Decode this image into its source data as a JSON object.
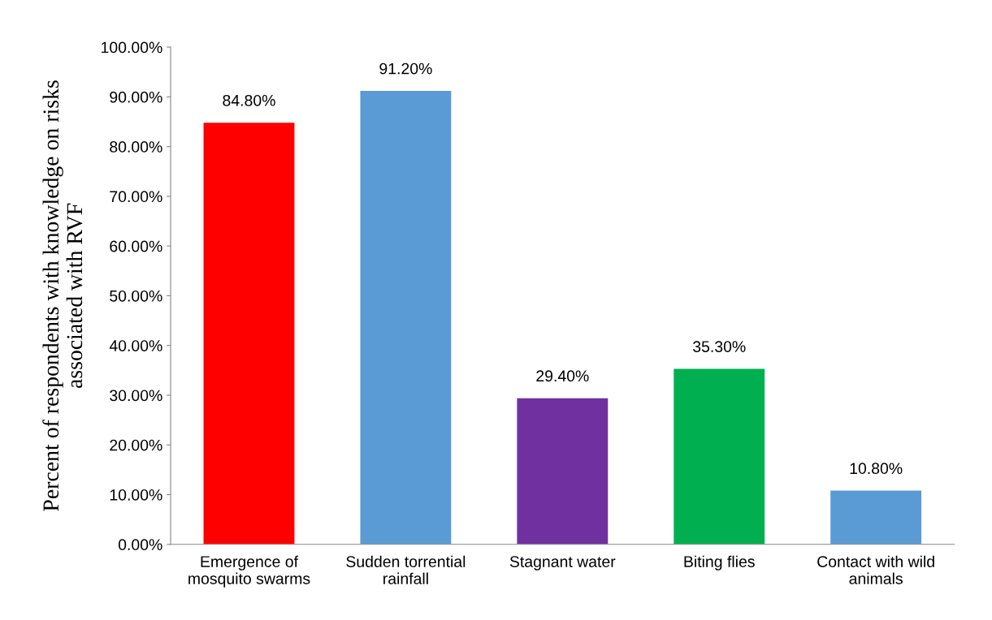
{
  "chart_data": {
    "type": "bar",
    "ylabel": "Percent of respondents with knowledge on risks\nassociated with RVF",
    "categories": [
      "Emergence of\nmosquito swarms",
      "Sudden torrential\nrainfall",
      "Stagnant water",
      "Biting flies",
      "Contact with wild\nanimals"
    ],
    "values": [
      84.8,
      91.2,
      29.4,
      35.3,
      10.8
    ],
    "colors": [
      "#ff0000",
      "#5b9bd5",
      "#7030a0",
      "#00b050",
      "#5b9bd5"
    ],
    "value_labels": [
      "84.80%",
      "91.20%",
      "29.40%",
      "35.30%",
      "10.80%"
    ],
    "ylim": [
      0,
      100
    ],
    "yticks": [
      {
        "value": 0,
        "label": "0.00%"
      },
      {
        "value": 10,
        "label": "10.00%"
      },
      {
        "value": 20,
        "label": "20.00%"
      },
      {
        "value": 30,
        "label": "30.00%"
      },
      {
        "value": 40,
        "label": "40.00%"
      },
      {
        "value": 50,
        "label": "50.00%"
      },
      {
        "value": 60,
        "label": "60.00%"
      },
      {
        "value": 70,
        "label": "70.00%"
      },
      {
        "value": 80,
        "label": "80.00%"
      },
      {
        "value": 90,
        "label": "90.00%"
      },
      {
        "value": 100,
        "label": "100.00%"
      }
    ],
    "grid": false,
    "legend": false
  }
}
